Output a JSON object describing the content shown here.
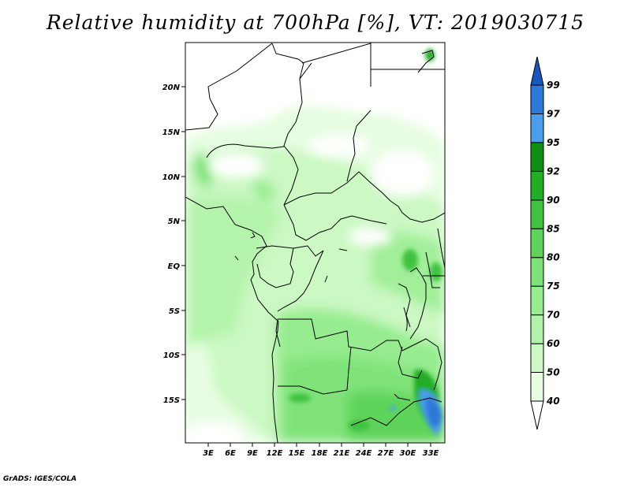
{
  "title": "Relative humidity at 700hPa [%], VT: 2019030715",
  "credit": "GrADS: IGES/COLA",
  "map": {
    "lat_labels": [
      "20N",
      "15N",
      "10N",
      "5N",
      "EQ",
      "5S",
      "10S",
      "15S"
    ],
    "lon_labels": [
      "3E",
      "6E",
      "9E",
      "12E",
      "15E",
      "18E",
      "21E",
      "24E",
      "27E",
      "30E",
      "33E"
    ]
  },
  "colorbar": {
    "levels": [
      "40",
      "50",
      "60",
      "70",
      "75",
      "80",
      "85",
      "90",
      "92",
      "95",
      "97",
      "99"
    ],
    "colors": [
      "#ffffff",
      "#e6fde1",
      "#cbf8c3",
      "#b2f3aa",
      "#96ec8f",
      "#7de278",
      "#5ed45a",
      "#3fc33f",
      "#22ad25",
      "#0f8e14",
      "#4c9eea",
      "#2e78d9",
      "#1856c0"
    ]
  }
}
